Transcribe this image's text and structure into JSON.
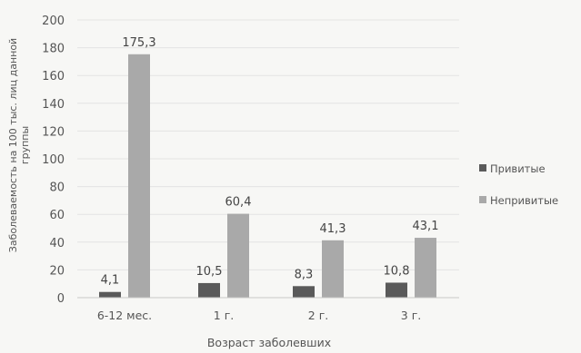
{
  "chart_data": {
    "type": "bar",
    "xlabel": "Возраст заболевших",
    "ylabel": "Заболеваемость на 100 тыс. лиц данной группы",
    "ylim": [
      0,
      200
    ],
    "ytick_step": 20,
    "grid": true,
    "legend_position": "right",
    "categories": [
      "6-12 мес.",
      "1 г.",
      "2 г.",
      "3 г."
    ],
    "series": [
      {
        "name": "Привитые",
        "values": [
          4.1,
          10.5,
          8.3,
          10.8
        ],
        "labels": [
          "4,1",
          "10,5",
          "8,3",
          "10,8"
        ],
        "color": "#5a5a5a"
      },
      {
        "name": "Непривитые",
        "values": [
          175.3,
          60.4,
          41.3,
          43.1
        ],
        "labels": [
          "175,3",
          "60,4",
          "41,3",
          "43,1"
        ],
        "color": "#a9a9a9"
      }
    ]
  }
}
